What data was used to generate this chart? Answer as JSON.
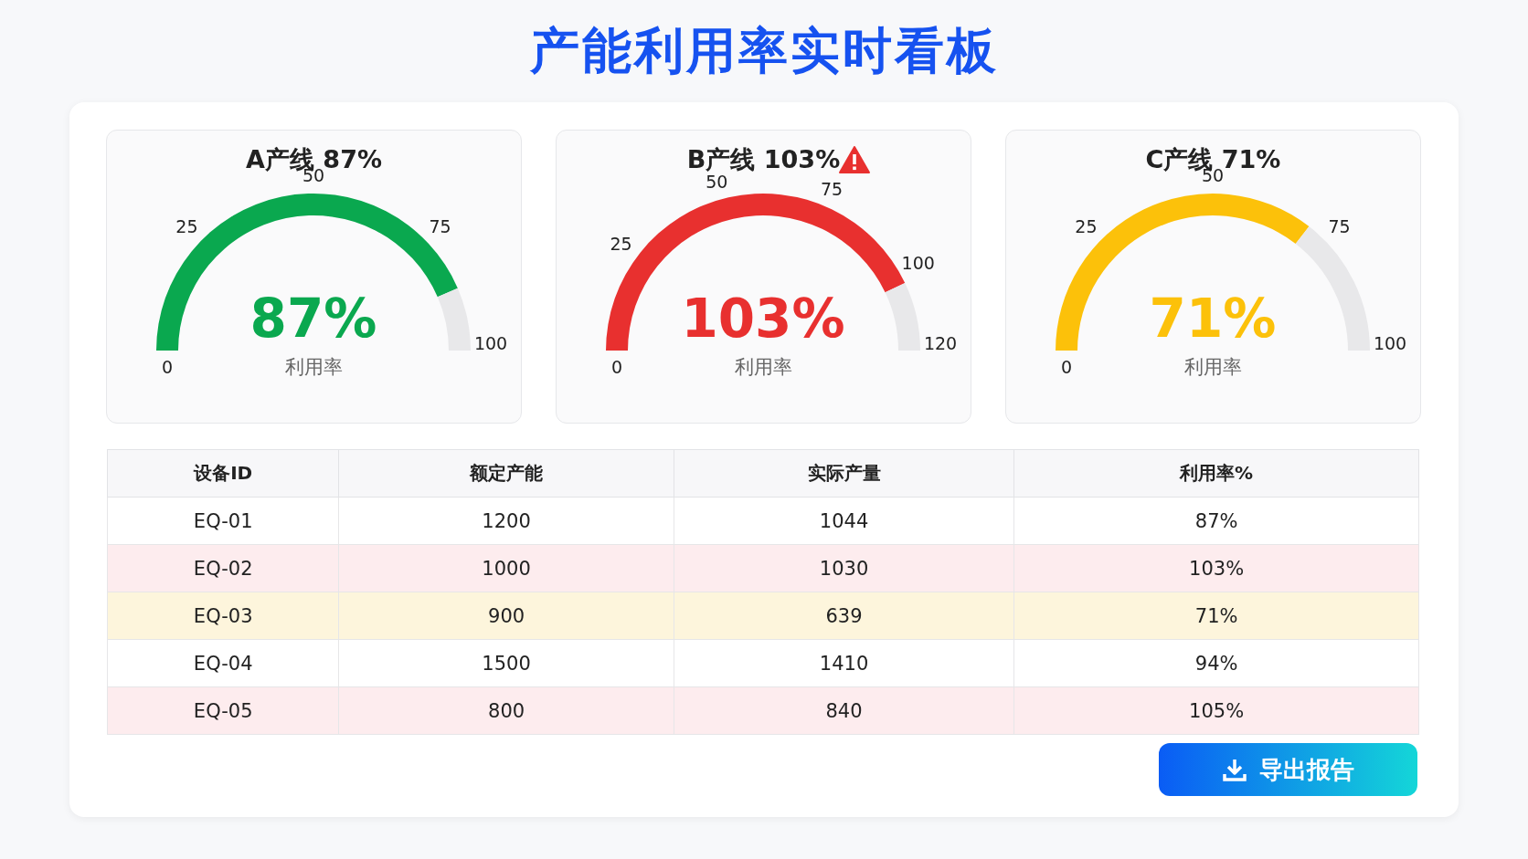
{
  "chart_data": [
    {
      "type": "other",
      "title": "产能利用率实时看板"
    },
    {
      "type": "donut",
      "title": "A产线 87%",
      "xlabel": "利用率",
      "categories": [
        null,
        null
      ],
      "values": [
        87,
        13
      ],
      "value_labels": [
        "87%",
        null
      ],
      "colors": [
        "#0aa84f",
        "#e8e8ea"
      ],
      "annotations": [
        "0",
        "25",
        "50",
        "75",
        "100"
      ]
    },
    {
      "type": "donut",
      "title": "B产线 103%",
      "xlabel": "利用率",
      "categories": [
        null,
        null
      ],
      "values": [
        103,
        17
      ],
      "value_labels": [
        "103%",
        null
      ],
      "colors": [
        "#e8302f",
        "#e8e8ea"
      ],
      "annotations": [
        "0",
        "25",
        "50",
        "75",
        "100",
        "120"
      ]
    },
    {
      "type": "donut",
      "title": "C产线 71%",
      "xlabel": "利用率",
      "categories": [
        null,
        null
      ],
      "values": [
        71,
        29
      ],
      "value_labels": [
        "71%",
        null
      ],
      "colors": [
        "#fcc10a",
        "#e8e8ea"
      ],
      "annotations": [
        "0",
        "25",
        "50",
        "75",
        "100"
      ]
    },
    {
      "type": "other",
      "xlabel": "设备ID",
      "categories": [
        "EQ-01",
        "EQ-02",
        "EQ-03",
        "EQ-04",
        "EQ-05"
      ],
      "colors": [
        "#ffffff",
        "#fdecee",
        "#fdf5dc",
        "#ffffff",
        "#fdecee"
      ],
      "data_labels": true,
      "annotations": [
        "导出报告"
      ],
      "series": [
        {
          "name": "额定产能",
          "values": [
            1200,
            1000,
            900,
            1500,
            800
          ],
          "colors": [
            "#ffffff",
            "#fdecee",
            "#fdf5dc",
            "#ffffff",
            "#fdecee"
          ]
        },
        {
          "name": "实际产量",
          "values": [
            1044,
            1030,
            639,
            1410,
            840
          ],
          "colors": [
            "#ffffff",
            "#fdecee",
            "#fdf5dc",
            "#ffffff",
            "#fdecee"
          ]
        },
        {
          "name": "利用率%",
          "values": [
            87,
            103,
            71,
            94,
            105
          ],
          "value_labels": [
            "87%",
            "103%",
            "71%",
            "94%",
            "105%"
          ],
          "colors": [
            "#ffffff",
            "#fdecee",
            "#fdf5dc",
            "#ffffff",
            "#fdecee"
          ]
        }
      ]
    }
  ]
}
